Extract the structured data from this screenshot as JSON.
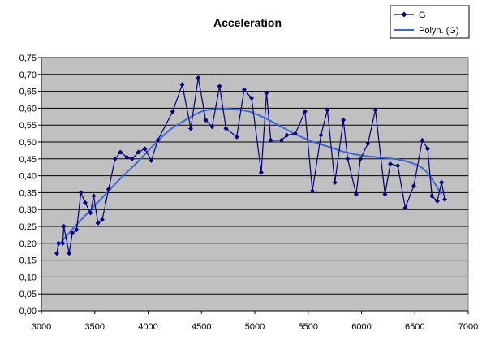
{
  "chart_data": {
    "type": "line",
    "title": "Acceleration",
    "xlabel": "",
    "ylabel": "",
    "xlim": [
      3000,
      7000
    ],
    "ylim": [
      0,
      0.75
    ],
    "x_ticks": [
      "3000",
      "3500",
      "4000",
      "4500",
      "5000",
      "5500",
      "6000",
      "6500",
      "7000"
    ],
    "y_ticks": [
      "0,00",
      "0,05",
      "0,10",
      "0,15",
      "0,20",
      "0,25",
      "0,30",
      "0,35",
      "0,40",
      "0,45",
      "0,50",
      "0,55",
      "0,60",
      "0,65",
      "0,70",
      "0,75"
    ],
    "grid": true,
    "plot_background": "#c0c0c0",
    "legend_position": "top-right",
    "series": [
      {
        "name": "G",
        "color": "#000080",
        "marker": "diamond",
        "x": [
          3145,
          3160,
          3200,
          3210,
          3260,
          3290,
          3330,
          3370,
          3410,
          3460,
          3490,
          3530,
          3570,
          3630,
          3690,
          3740,
          3800,
          3850,
          3910,
          3970,
          4030,
          4090,
          4230,
          4320,
          4400,
          4470,
          4540,
          4600,
          4670,
          4730,
          4830,
          4900,
          4970,
          5060,
          5110,
          5150,
          5250,
          5300,
          5380,
          5470,
          5540,
          5620,
          5680,
          5750,
          5830,
          5870,
          5950,
          5990,
          6060,
          6130,
          6220,
          6270,
          6340,
          6410,
          6490,
          6570,
          6620,
          6660,
          6710,
          6750,
          6780
        ],
        "y": [
          0.17,
          0.2,
          0.2,
          0.25,
          0.17,
          0.23,
          0.24,
          0.35,
          0.32,
          0.29,
          0.34,
          0.26,
          0.27,
          0.36,
          0.45,
          0.47,
          0.455,
          0.45,
          0.47,
          0.48,
          0.445,
          0.505,
          0.59,
          0.67,
          0.54,
          0.69,
          0.565,
          0.545,
          0.665,
          0.54,
          0.515,
          0.655,
          0.63,
          0.41,
          0.645,
          0.505,
          0.505,
          0.52,
          0.525,
          0.59,
          0.355,
          0.52,
          0.595,
          0.38,
          0.565,
          0.45,
          0.345,
          0.45,
          0.495,
          0.595,
          0.345,
          0.435,
          0.43,
          0.305,
          0.37,
          0.505,
          0.48,
          0.34,
          0.325,
          0.38,
          0.33
        ]
      },
      {
        "name": "Polyn. (G)",
        "color": "#3a6ad8",
        "marker": "none",
        "x": [
          3150,
          3300,
          3450,
          3600,
          3750,
          3900,
          4050,
          4200,
          4350,
          4500,
          4650,
          4800,
          4950,
          5100,
          5250,
          5400,
          5550,
          5700,
          5850,
          6000,
          6150,
          6300,
          6450,
          6600,
          6750
        ],
        "y": [
          0.19,
          0.245,
          0.295,
          0.345,
          0.395,
          0.44,
          0.49,
          0.535,
          0.565,
          0.59,
          0.598,
          0.597,
          0.59,
          0.57,
          0.545,
          0.52,
          0.5,
          0.485,
          0.47,
          0.46,
          0.455,
          0.45,
          0.44,
          0.415,
          0.345
        ]
      }
    ]
  }
}
